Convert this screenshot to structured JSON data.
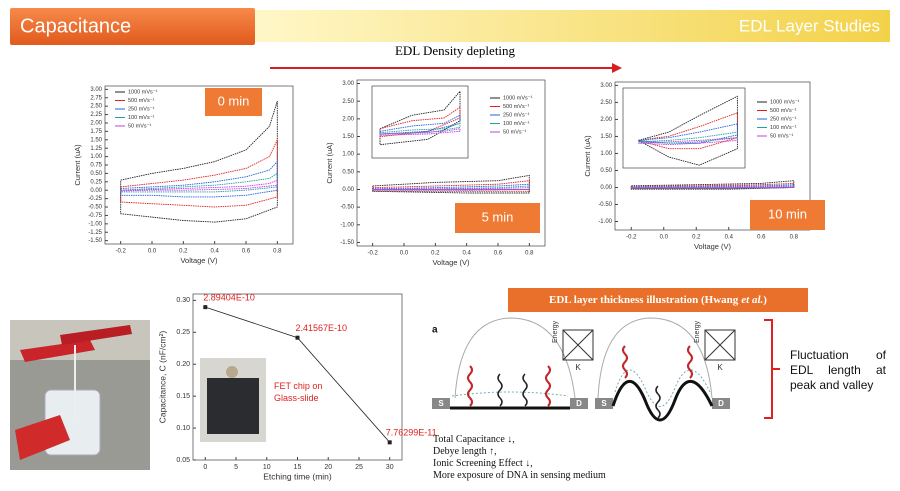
{
  "header": {
    "title": "Capacitance",
    "section": "EDL Layer Studies"
  },
  "arrow_label": "EDL Density depleting",
  "chart_data": [
    {
      "type": "line",
      "annotation": "0 min",
      "xlabel": "Voltage (V)",
      "ylabel": "Current (uA)",
      "xlim": [
        -0.3,
        0.9
      ],
      "ylim": [
        -1.6,
        3.1
      ],
      "xticks": [
        -0.2,
        {
          "value": 0,
          "label": "0.0"
        },
        0.2,
        0.4,
        0.6,
        0.8
      ],
      "yticks": [
        {
          "value": -1.5,
          "label": "-1.50"
        },
        {
          "value": -1.25,
          "label": "-1.25"
        },
        {
          "value": -1,
          "label": "-1.00"
        },
        {
          "value": -0.75,
          "label": "-0.75"
        },
        {
          "value": -0.5,
          "label": "-0.50"
        },
        {
          "value": -0.25,
          "label": "-0.25"
        },
        {
          "value": 0,
          "label": "0.00"
        },
        {
          "value": 0.25,
          "label": "0.25"
        },
        {
          "value": 0.5,
          "label": "0.50"
        },
        {
          "value": 0.75,
          "label": "0.75"
        },
        {
          "value": 1,
          "label": "1.00"
        },
        {
          "value": 1.25,
          "label": "1.25"
        },
        {
          "value": 1.5,
          "label": "1.50"
        },
        {
          "value": 1.75,
          "label": "1.75"
        },
        {
          "value": 2,
          "label": "2.00"
        },
        {
          "value": 2.25,
          "label": "2.25"
        },
        {
          "value": 2.5,
          "label": "2.50"
        },
        {
          "value": 2.75,
          "label": "2.75"
        },
        {
          "value": 3,
          "label": "3.00"
        }
      ],
      "x": [
        -0.2,
        0,
        0.2,
        0.4,
        0.6,
        0.75,
        0.8,
        0.8,
        0.6,
        0.4,
        0.2,
        0,
        -0.2,
        -0.2
      ],
      "series": [
        {
          "name": "1000 mVs⁻¹",
          "color": "#222222",
          "values": [
            0.3,
            0.5,
            0.65,
            0.85,
            1.2,
            1.9,
            2.65,
            -0.5,
            -0.85,
            -0.95,
            -0.9,
            -0.8,
            -0.7,
            0.3
          ]
        },
        {
          "name": "500 mVs⁻¹",
          "color": "#e02020",
          "values": [
            0.1,
            0.2,
            0.3,
            0.45,
            0.65,
            1.0,
            1.5,
            -0.2,
            -0.45,
            -0.5,
            -0.45,
            -0.4,
            -0.35,
            0.1
          ]
        },
        {
          "name": "250 mVs⁻¹",
          "color": "#2060e0",
          "values": [
            0.05,
            0.1,
            0.15,
            0.25,
            0.4,
            0.6,
            0.85,
            0,
            -0.15,
            -0.2,
            -0.2,
            -0.15,
            -0.15,
            0.05
          ]
        },
        {
          "name": "100 mVs⁻¹",
          "color": "#20a0a0",
          "values": [
            0,
            0.05,
            0.1,
            0.15,
            0.25,
            0.35,
            0.5,
            0.1,
            0,
            -0.05,
            -0.05,
            -0.05,
            -0.05,
            0
          ]
        },
        {
          "name": "50 mVs⁻¹",
          "color": "#c040e0",
          "values": [
            0,
            0.02,
            0.05,
            0.08,
            0.12,
            0.2,
            0.3,
            0.15,
            0.05,
            0.02,
            0,
            0,
            -0.02,
            0
          ]
        }
      ]
    },
    {
      "type": "line",
      "annotation": "5 min",
      "xlabel": "Voltage (V)",
      "ylabel": "Current (uA)",
      "xlim": [
        -0.3,
        0.9
      ],
      "ylim": [
        -1.6,
        3.1
      ],
      "xticks": [
        -0.2,
        {
          "value": 0,
          "label": "0.0"
        },
        0.2,
        0.4,
        0.6,
        0.8
      ],
      "yticks": [
        {
          "value": -1.5,
          "label": "-1.50"
        },
        {
          "value": -1,
          "label": "-1.00"
        },
        {
          "value": -0.5,
          "label": "-0.50"
        },
        {
          "value": 0,
          "label": "0.00"
        },
        {
          "value": 0.5,
          "label": "0.50"
        },
        {
          "value": 1,
          "label": "1.00"
        },
        {
          "value": 1.5,
          "label": "1.50"
        },
        {
          "value": 2,
          "label": "2.00"
        },
        {
          "value": 2.5,
          "label": "2.50"
        },
        {
          "value": 3,
          "label": "3.00"
        }
      ],
      "x": [
        -0.2,
        0.2,
        0.6,
        0.8,
        0.8,
        0.4,
        -0.2,
        -0.2
      ],
      "series": [
        {
          "name": "1000 mVs⁻¹",
          "color": "#222222",
          "values": [
            0.1,
            0.2,
            0.25,
            0.4,
            -0.1,
            -0.1,
            -0.05,
            0.1
          ]
        },
        {
          "name": "500 mVs⁻¹",
          "color": "#e02020",
          "values": [
            0.05,
            0.1,
            0.15,
            0.25,
            -0.05,
            -0.05,
            -0.05,
            0.05
          ]
        },
        {
          "name": "250 mVs⁻¹",
          "color": "#2060e0",
          "values": [
            0.02,
            0.05,
            0.1,
            0.15,
            0,
            -0.02,
            -0.02,
            0.02
          ]
        },
        {
          "name": "100 mVs⁻¹",
          "color": "#20a0a0",
          "values": [
            0,
            0.02,
            0.05,
            0.1,
            0,
            0,
            -0.01,
            0
          ]
        },
        {
          "name": "50 mVs⁻¹",
          "color": "#c040e0",
          "values": [
            0,
            0.01,
            0.03,
            0.05,
            0,
            0,
            0,
            0
          ]
        }
      ]
    },
    {
      "type": "line",
      "xlim": [
        -0.3,
        0.9
      ],
      "ylim": [
        0.5,
        3.2
      ],
      "x": [
        -0.2,
        0.2,
        0.6,
        0.8,
        0.8,
        0.4,
        -0.2,
        -0.2
      ],
      "series": [
        {
          "color": "#222222",
          "values": [
            1.6,
            2.1,
            2.3,
            3.0,
            1.9,
            1.2,
            1.0,
            1.6
          ]
        },
        {
          "color": "#e02020",
          "values": [
            1.6,
            1.9,
            2.0,
            2.4,
            2.0,
            1.5,
            1.3,
            1.6
          ]
        },
        {
          "color": "#2060e0",
          "values": [
            1.5,
            1.7,
            1.8,
            2.1,
            1.8,
            1.5,
            1.4,
            1.5
          ]
        },
        {
          "color": "#20a0a0",
          "values": [
            1.45,
            1.55,
            1.6,
            1.8,
            1.65,
            1.45,
            1.4,
            1.45
          ]
        },
        {
          "color": "#c040e0",
          "values": [
            1.4,
            1.45,
            1.5,
            1.6,
            1.5,
            1.4,
            1.35,
            1.4
          ]
        }
      ]
    },
    {
      "type": "line",
      "annotation": "10 min",
      "xlabel": "Voltage (V)",
      "ylabel": "Current (uA)",
      "xlim": [
        -0.3,
        0.9
      ],
      "ylim": [
        -1.25,
        3.1
      ],
      "xticks": [
        -0.2,
        {
          "value": 0,
          "label": "0.0"
        },
        0.2,
        0.4,
        0.6,
        0.8
      ],
      "yticks": [
        {
          "value": -1,
          "label": "-1.00"
        },
        {
          "value": -0.5,
          "label": "-0.50"
        },
        {
          "value": 0,
          "label": "0.00"
        },
        {
          "value": 0.5,
          "label": "0.50"
        },
        {
          "value": 1,
          "label": "1.00"
        },
        {
          "value": 1.5,
          "label": "1.50"
        },
        {
          "value": 2,
          "label": "2.00"
        },
        {
          "value": 2.5,
          "label": "2.50"
        },
        {
          "value": 3,
          "label": "3.00"
        }
      ],
      "x": [
        -0.2,
        0.2,
        0.6,
        0.8,
        0.8,
        0.4,
        -0.2,
        -0.2
      ],
      "series": [
        {
          "name": "1000 mVs⁻¹",
          "color": "#222222",
          "values": [
            0.05,
            0.08,
            0.12,
            0.2,
            0,
            -0.05,
            -0.05,
            0.05
          ]
        },
        {
          "name": "500 mVs⁻¹",
          "color": "#e02020",
          "values": [
            0.03,
            0.05,
            0.08,
            0.12,
            0,
            -0.03,
            -0.03,
            0.03
          ]
        },
        {
          "name": "250 mVs⁻¹",
          "color": "#2060e0",
          "values": [
            0.02,
            0.03,
            0.05,
            0.08,
            0,
            -0.02,
            -0.02,
            0.02
          ]
        },
        {
          "name": "100 mVs⁻¹",
          "color": "#20a0a0",
          "values": [
            0.01,
            0.02,
            0.03,
            0.05,
            0,
            -0.01,
            -0.01,
            0.01
          ]
        },
        {
          "name": "50 mVs⁻¹",
          "color": "#c040e0",
          "values": [
            0,
            0.01,
            0.02,
            0.03,
            0,
            0,
            0,
            0
          ]
        }
      ]
    },
    {
      "type": "line",
      "xlim": [
        -0.3,
        0.5
      ],
      "ylim": [
        0.3,
        3.2
      ],
      "x": [
        -0.2,
        0,
        0.2,
        0.45,
        0.45,
        0.2,
        0,
        -0.2
      ],
      "series": [
        {
          "color": "#222222",
          "values": [
            1.3,
            1.6,
            2.2,
            2.9,
            1.0,
            0.4,
            0.7,
            1.3
          ]
        },
        {
          "color": "#e02020",
          "values": [
            1.3,
            1.45,
            1.8,
            2.3,
            1.4,
            1.0,
            1.0,
            1.3
          ]
        },
        {
          "color": "#2060e0",
          "values": [
            1.3,
            1.4,
            1.6,
            1.9,
            1.5,
            1.2,
            1.2,
            1.3
          ]
        },
        {
          "color": "#20a0a0",
          "values": [
            1.25,
            1.3,
            1.4,
            1.6,
            1.4,
            1.25,
            1.2,
            1.25
          ]
        },
        {
          "color": "#c040e0",
          "values": [
            1.2,
            1.25,
            1.3,
            1.4,
            1.3,
            1.2,
            1.15,
            1.2
          ]
        }
      ]
    },
    {
      "type": "line",
      "xlabel": "Etching time (min)",
      "ylabel": "Capacitance, C (nF/cm²)",
      "annotation": "FET chip on Glass-slide",
      "xlim": [
        -2,
        32
      ],
      "ylim": [
        0.05,
        0.31
      ],
      "xticks": [
        0,
        5,
        10,
        15,
        20,
        25,
        30
      ],
      "yticks": [
        0.05,
        {
          "value": 0.1,
          "label": "0.10"
        },
        0.15,
        {
          "value": 0.2,
          "label": "0.20"
        },
        0.25,
        {
          "value": 0.3,
          "label": "0.30"
        }
      ],
      "x": [
        0,
        15,
        30
      ],
      "series": [
        {
          "color": "#222222",
          "values": [
            0.289404,
            0.241567,
            0.0776299
          ],
          "value_labels": [
            "2.89404E-10",
            "2.41567E-10",
            "7.76299E-11"
          ]
        }
      ]
    }
  ],
  "illustration": {
    "title_parts": [
      "EDL layer thickness illustration (Hwang",
      "et al.",
      ")"
    ],
    "panel_label": "a",
    "energy": "Energy",
    "k": "K",
    "source": "S",
    "drain": "D",
    "side_note": "Fluctuation of EDL length at peak and valley"
  },
  "notes": [
    "Total Capacitance ↓,",
    "Debye length ↑,",
    "Ionic Screening Effect ↓,",
    "More exposure of DNA in sensing medium"
  ]
}
